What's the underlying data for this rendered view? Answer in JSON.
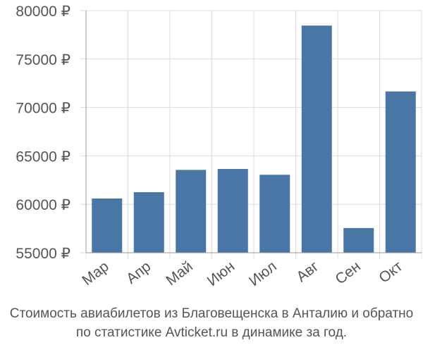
{
  "chart_data": {
    "type": "bar",
    "title": "",
    "xlabel": "",
    "ylabel": "",
    "categories": [
      "Мар",
      "Апр",
      "Май",
      "Июн",
      "Июл",
      "Авг",
      "Сен",
      "Окт"
    ],
    "values": [
      60600,
      61250,
      63550,
      63650,
      63050,
      78450,
      57550,
      71650
    ],
    "ylim": [
      55000,
      80000
    ],
    "yticks": [
      55000,
      60000,
      65000,
      70000,
      75000,
      80000
    ],
    "ytick_labels": [
      "55000 ₽",
      "60000 ₽",
      "65000 ₽",
      "70000 ₽",
      "75000 ₽",
      "80000 ₽"
    ],
    "bar_color": "#4a76a6",
    "grid": true,
    "grid_color": "#dddddd",
    "axis_color": "#999999",
    "legend": "none"
  },
  "caption": {
    "line1": "Стоимость авиабилетов из Благовещенска в Анталию и обратно",
    "line2": "по статистике Avticket.ru в динамике за год."
  }
}
